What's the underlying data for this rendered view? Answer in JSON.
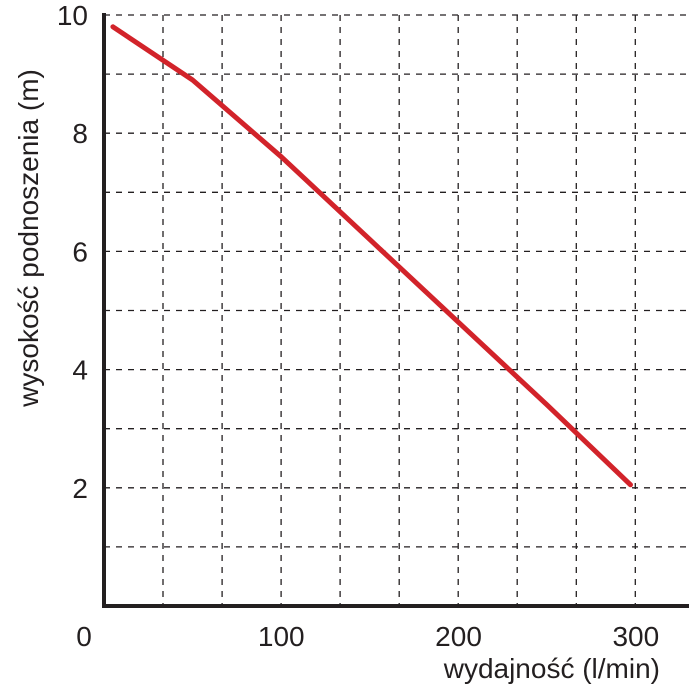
{
  "chart_data": {
    "type": "line",
    "xlabel": "wydajność (l/min)",
    "ylabel": "wysokość podnoszenia (m)",
    "xlim": [
      0,
      330
    ],
    "ylim": [
      0,
      10
    ],
    "x_ticks": [
      0,
      100,
      200,
      300
    ],
    "y_ticks": [
      2,
      4,
      6,
      8,
      10
    ],
    "x_grid_step": 33.3,
    "y_grid_step": 1,
    "grid": true,
    "series": [
      {
        "color": "#d2232a",
        "x": [
          5,
          50,
          100,
          150,
          200,
          250,
          297
        ],
        "y": [
          9.8,
          8.9,
          7.6,
          6.2,
          4.8,
          3.4,
          2.05
        ]
      }
    ]
  }
}
